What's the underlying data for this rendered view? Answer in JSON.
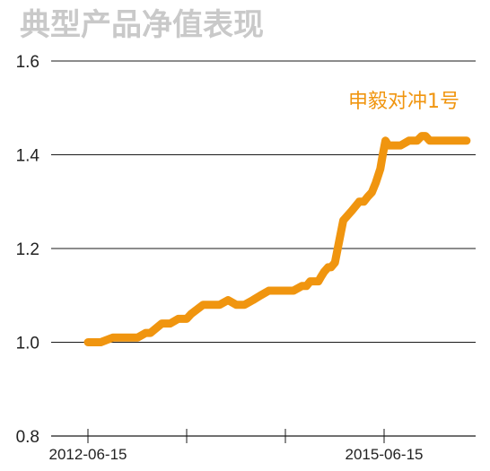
{
  "chart_data": {
    "type": "line",
    "title": "典型产品净值表现",
    "xlabel": "",
    "ylabel": "",
    "ylim": [
      0.8,
      1.6
    ],
    "y_ticks": [
      "1.6",
      "1.4",
      "1.2",
      "1.0",
      "0.8"
    ],
    "x_tick_labels": [
      "2012-06-15",
      "2015-06-15"
    ],
    "grid": true,
    "legend": "top-right",
    "series": [
      {
        "name": "申毅对冲1号",
        "color": "#f0950f",
        "x": [
          "2012-06-15",
          "2012-08-01",
          "2012-09-15",
          "2012-11-01",
          "2012-12-15",
          "2013-01-15",
          "2013-02-01",
          "2013-03-15",
          "2013-04-15",
          "2013-05-15",
          "2013-06-15",
          "2013-07-01",
          "2013-08-15",
          "2013-09-15",
          "2013-10-15",
          "2013-11-15",
          "2013-12-15",
          "2014-01-15",
          "2014-02-15",
          "2014-03-15",
          "2014-04-15",
          "2014-05-15",
          "2014-06-15",
          "2014-07-15",
          "2014-08-15",
          "2014-09-01",
          "2014-09-15",
          "2014-10-15",
          "2014-10-25",
          "2014-11-05",
          "2014-11-20",
          "2014-12-01",
          "2014-12-15",
          "2015-01-15",
          "2015-02-15",
          "2015-03-15",
          "2015-04-01",
          "2015-04-15",
          "2015-05-01",
          "2015-05-15",
          "2015-06-01",
          "2015-06-10",
          "2015-06-20",
          "2015-07-01",
          "2015-07-15",
          "2015-08-15",
          "2015-09-15",
          "2015-10-15",
          "2015-11-01",
          "2015-11-15",
          "2015-12-01",
          "2015-12-15",
          "2016-01-15",
          "2016-02-15",
          "2016-03-01",
          "2016-03-15",
          "2016-04-15"
        ],
        "values": [
          1.0,
          1.0,
          1.01,
          1.01,
          1.01,
          1.02,
          1.02,
          1.04,
          1.04,
          1.05,
          1.05,
          1.06,
          1.08,
          1.08,
          1.08,
          1.09,
          1.08,
          1.08,
          1.09,
          1.1,
          1.11,
          1.11,
          1.11,
          1.11,
          1.12,
          1.12,
          1.13,
          1.13,
          1.14,
          1.15,
          1.16,
          1.16,
          1.17,
          1.26,
          1.28,
          1.3,
          1.3,
          1.31,
          1.32,
          1.34,
          1.37,
          1.4,
          1.43,
          1.42,
          1.42,
          1.42,
          1.43,
          1.43,
          1.44,
          1.44,
          1.43,
          1.43,
          1.43,
          1.43,
          1.43,
          1.43,
          1.43
        ]
      }
    ]
  }
}
